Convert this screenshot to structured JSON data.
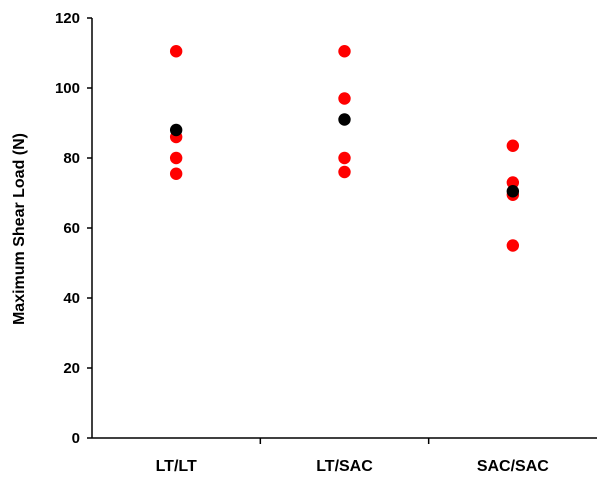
{
  "chart_data": {
    "type": "scatter",
    "title": "",
    "xlabel": "",
    "ylabel": "Maximum Shear Load (N)",
    "categories": [
      "LT/LT",
      "LT/SAC",
      "SAC/SAC"
    ],
    "ylim": [
      0,
      120
    ],
    "yticks": [
      0,
      20,
      40,
      60,
      80,
      100,
      120
    ],
    "grid": false,
    "legend": "none",
    "series": [
      {
        "color": "#ff0000",
        "points": [
          {
            "category": "LT/LT",
            "y": 110.5
          },
          {
            "category": "LT/LT",
            "y": 86
          },
          {
            "category": "LT/LT",
            "y": 80
          },
          {
            "category": "LT/LT",
            "y": 75.5
          },
          {
            "category": "LT/SAC",
            "y": 110.5
          },
          {
            "category": "LT/SAC",
            "y": 97
          },
          {
            "category": "LT/SAC",
            "y": 80
          },
          {
            "category": "LT/SAC",
            "y": 76
          },
          {
            "category": "SAC/SAC",
            "y": 83.5
          },
          {
            "category": "SAC/SAC",
            "y": 73
          },
          {
            "category": "SAC/SAC",
            "y": 69.5
          },
          {
            "category": "SAC/SAC",
            "y": 55
          }
        ]
      },
      {
        "color": "#000000",
        "points": [
          {
            "category": "LT/LT",
            "y": 88
          },
          {
            "category": "LT/SAC",
            "y": 91
          },
          {
            "category": "SAC/SAC",
            "y": 70.5
          }
        ]
      }
    ]
  }
}
